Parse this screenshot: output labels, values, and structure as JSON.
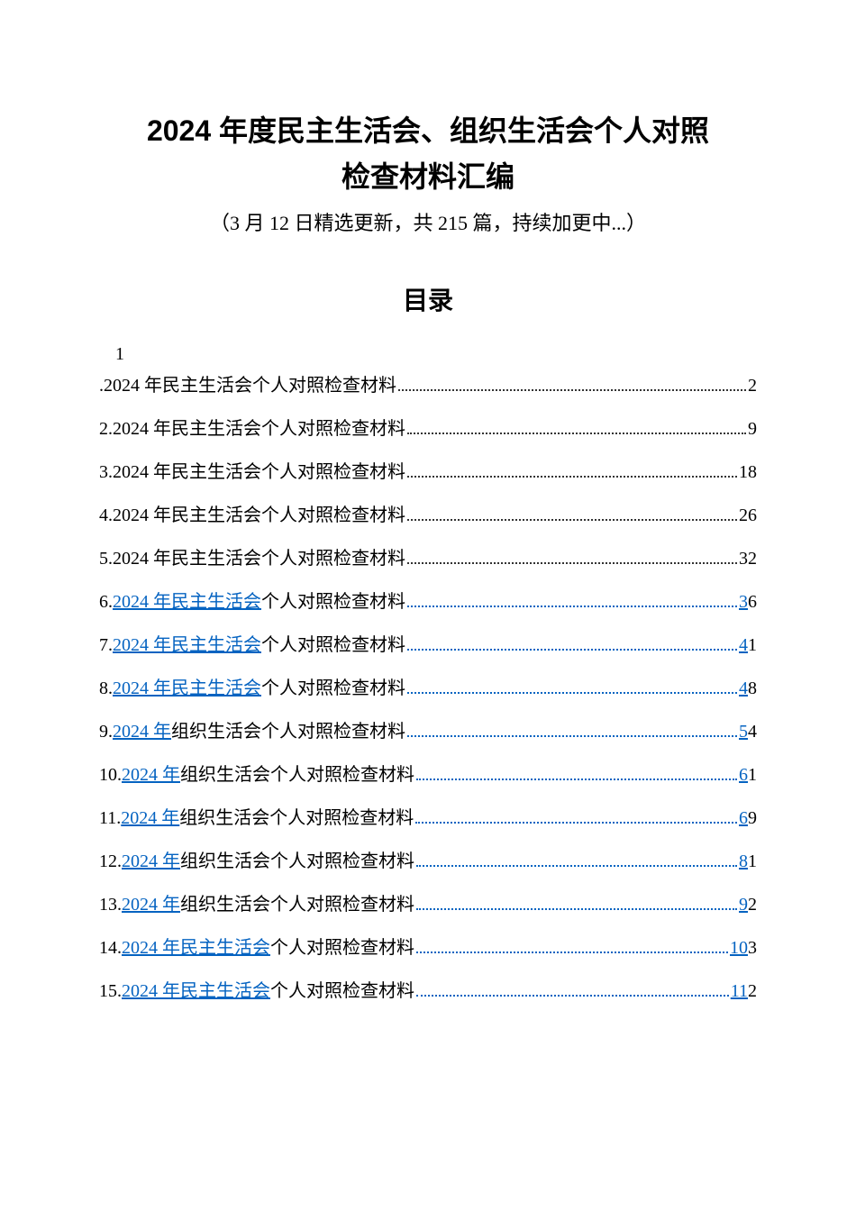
{
  "title_line1": "2024 年度民主生活会、组织生活会个人对照",
  "title_line2": "检查材料汇编",
  "subtitle": "（3 月 12 日精选更新，共 215 篇，持续加更中...）",
  "toc_heading": "目录",
  "first_number": "1",
  "colors": {
    "text": "#000000",
    "link": "#0563c1",
    "background": "#ffffff"
  },
  "typography": {
    "title_fontsize": 32,
    "subtitle_fontsize": 22,
    "toc_heading_fontsize": 28,
    "toc_fontsize": 20
  },
  "toc": [
    {
      "prefix": ".",
      "linked_part": "",
      "plain_part": "2024 年民主生活会个人对照检查材料",
      "dots_linked": false,
      "page_linked": "",
      "page_plain": "2"
    },
    {
      "prefix": "2.",
      "linked_part": "",
      "plain_part": "2024 年民主生活会个人对照检查材料",
      "dots_linked": false,
      "page_linked": "",
      "page_plain": "9"
    },
    {
      "prefix": "3.",
      "linked_part": "",
      "plain_part": "2024 年民主生活会个人对照检查材料",
      "dots_linked": false,
      "page_linked": "",
      "page_plain": "18"
    },
    {
      "prefix": "4.",
      "linked_part": "",
      "plain_part": "2024 年民主生活会个人对照检查材料",
      "dots_linked": false,
      "page_linked": "",
      "page_plain": "26"
    },
    {
      "prefix": "5.",
      "linked_part": "",
      "plain_part": "2024 年民主生活会个人对照检查材料",
      "dots_linked": false,
      "page_linked": "",
      "page_plain": "32"
    },
    {
      "prefix": "6.",
      "linked_part": "2024 年民主生活会",
      "plain_part": "个人对照检查材料",
      "dots_linked": true,
      "page_linked": "3",
      "page_plain": "6"
    },
    {
      "prefix": "7.",
      "linked_part": "2024 年民主生活会",
      "plain_part": "个人对照检查材料",
      "dots_linked": true,
      "page_linked": "4",
      "page_plain": "1"
    },
    {
      "prefix": "8.",
      "linked_part": "2024 年民主生活会",
      "plain_part": "个人对照检查材料",
      "dots_linked": true,
      "page_linked": "4",
      "page_plain": "8"
    },
    {
      "prefix": "9.",
      "linked_part": "2024 年",
      "plain_part": "组织生活会个人对照检查材料",
      "dots_linked": true,
      "page_linked": "5",
      "page_plain": "4"
    },
    {
      "prefix": "10.",
      "linked_part": "2024 年",
      "plain_part": "组织生活会个人对照检查材料",
      "dots_linked": true,
      "page_linked": "6",
      "page_plain": "1"
    },
    {
      "prefix": "11.",
      "linked_part": "2024 年",
      "plain_part": "组织生活会个人对照检查材料",
      "dots_linked": true,
      "page_linked": "6",
      "page_plain": "9"
    },
    {
      "prefix": "12.",
      "linked_part": "2024 年",
      "plain_part": "组织生活会个人对照检查材料",
      "dots_linked": true,
      "page_linked": "8",
      "page_plain": "1"
    },
    {
      "prefix": "13.",
      "linked_part": "2024 年",
      "plain_part": "组织生活会个人对照检查材料",
      "dots_linked": true,
      "page_linked": "9",
      "page_plain": "2"
    },
    {
      "prefix": "14.",
      "linked_part": "2024 年民主生活会",
      "plain_part": "个人对照检查材料",
      "dots_linked": true,
      "page_linked": "10",
      "page_plain": "3"
    },
    {
      "prefix": "15.",
      "linked_part": "2024 年民主生活会",
      "plain_part": "个人对照检查材料",
      "dots_linked": true,
      "page_linked": "11",
      "page_plain": "2"
    }
  ]
}
